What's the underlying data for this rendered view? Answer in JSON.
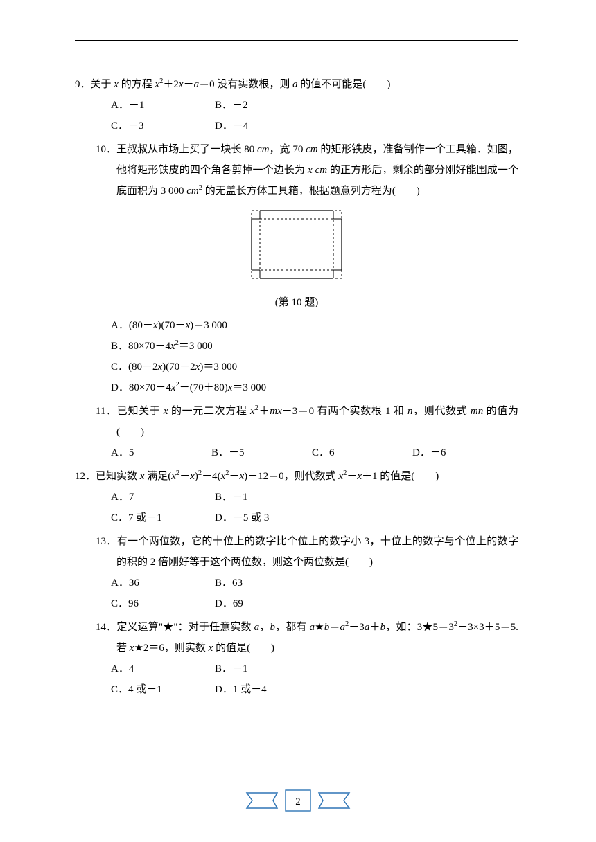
{
  "page": {
    "number": "2"
  },
  "figure": {
    "caption": "(第 10 题)",
    "outer_w": 130,
    "outer_h": 98,
    "inner_margin": 10,
    "stroke": "#000000",
    "dash": "3,3"
  },
  "questions": [
    {
      "num": "9．",
      "stem_html": "关于 <span class='it'>x</span> 的方程 <span class='it'>x</span><sup>2</sup>＋2<span class='it'>x</span>－<span class='it'>a</span>＝0 没有实数根，则 <span class='it'>a</span> 的值不可能是(　　)",
      "opts_layout": "2x2",
      "opts": [
        "A．－1",
        "B．－2",
        "C．－3",
        "D．－4"
      ]
    },
    {
      "num": "10．",
      "stem_html": "王叔叔从市场上买了一块长 80 <span class='it'>cm</span>，宽 70 <span class='it'>cm</span> 的矩形铁皮，准备制作一个工具箱．如图，他将矩形铁皮的四个角各剪掉一个边长为 <span class='it'>x cm</span> 的正方形后，剩余的部分刚好能围成一个底面积为 3 000 <span class='it'>cm</span><sup>2</sup> 的无盖长方体工具箱，根据题意列方程为(　　)",
      "has_figure": true,
      "opts_layout": "vertical",
      "opts_html": [
        "A．(80－<span class='it'>x</span>)(70－<span class='it'>x</span>)＝3 000",
        "B．80×70－4<span class='it'>x</span><sup>2</sup>＝3 000",
        "C．(80－2<span class='it'>x</span>)(70－2<span class='it'>x</span>)＝3 000",
        "D．80×70－4<span class='it'>x</span><sup>2</sup>－(70＋80)<span class='it'>x</span>＝3 000"
      ]
    },
    {
      "num": "11．",
      "stem_html": "已知关于 <span class='it'>x</span> 的一元二次方程 <span class='it'>x</span><sup>2</sup>＋<span class='it'>mx</span>－3＝0 有两个实数根 1 和 <span class='it'>n</span>，则代数式 <span class='it'>mn</span> 的值为(　　)",
      "opts_layout": "4col",
      "opts": [
        "A．5",
        "B．－5",
        "C．6",
        "D．－6"
      ]
    },
    {
      "num": "12．",
      "stem_html": "已知实数 <span class='it'>x</span> 满足(<span class='it'>x</span><sup>2</sup>－<span class='it'>x</span>)<sup>2</sup>－4(<span class='it'>x</span><sup>2</sup>－<span class='it'>x</span>)－12＝0，则代数式 <span class='it'>x</span><sup>2</sup>－<span class='it'>x</span>＋1 的值是(　　)",
      "opts_layout": "2x2",
      "opts": [
        "A．7",
        "B．－1",
        "C．7 或－1",
        "D．－5 或 3"
      ]
    },
    {
      "num": "13．",
      "stem_html": "有一个两位数，它的十位上的数字比个位上的数字小 3，十位上的数字与个位上的数字的积的 2 倍刚好等于这个两位数，则这个两位数是(　　)",
      "opts_layout": "2x2",
      "opts": [
        "A．36",
        "B．63",
        "C．96",
        "D．69"
      ]
    },
    {
      "num": "14．",
      "stem_html": "定义运算\"★\"：对于任意实数 <span class='it'>a</span>，<span class='it'>b</span>，都有 <span class='it'>a</span>★<span class='it'>b</span>＝<span class='it'>a</span><sup>2</sup>－3<span class='it'>a</span>＋<span class='it'>b</span>，如：3★5＝3<sup>2</sup>－3×3＋5＝5.若 <span class='it'>x</span>★2＝6，则实数 <span class='it'>x</span> 的值是(　　)",
      "opts_layout": "2x2",
      "opts": [
        "A．4",
        "B．－1",
        "C．4 或－1",
        "D．1 或－4"
      ]
    }
  ],
  "badge": {
    "stroke": "#2e74b5",
    "fill": "#ffffff"
  }
}
